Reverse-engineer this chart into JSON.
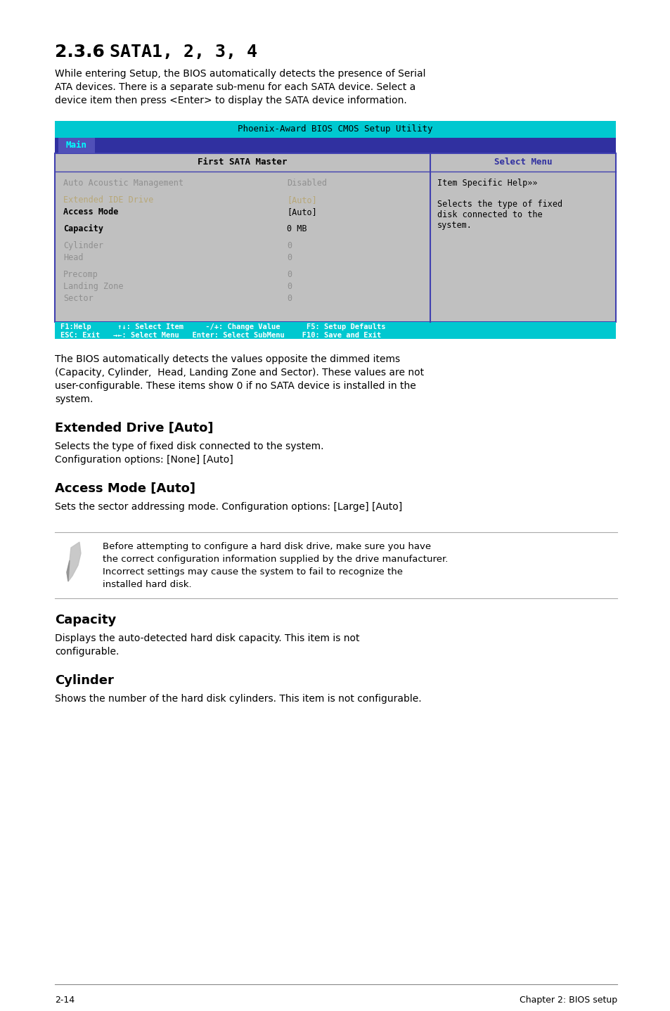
{
  "page_bg": "#ffffff",
  "section_number": "2.3.6",
  "section_title": "SATA1, 2, 3, 4",
  "intro_text": "While entering Setup, the BIOS automatically detects the presence of Serial\nATA devices. There is a separate sub-menu for each SATA device. Select a\ndevice item then press <Enter> to display the SATA device information.",
  "bios_title": "Phoenix-Award BIOS CMOS Setup Utility",
  "bios_title_bg": "#00c8d0",
  "bios_menu_bg": "#3030a0",
  "bios_menu_text": "Main",
  "bios_content_bg": "#c0c0c0",
  "bios_border": "#4040b0",
  "bios_header_left": "First SATA Master",
  "bios_header_right": "Select Menu",
  "bios_header_right_color": "#3030a0",
  "bios_rows": [
    {
      "label": "Auto Acoustic Management",
      "value": "Disabled",
      "dimmed": true,
      "bold_label": false
    },
    {
      "label": "Extended IDE Drive",
      "value": "[Auto]",
      "dimmed": true,
      "bold_label": false,
      "color_override": "#c8c0a0"
    },
    {
      "label": "Access Mode",
      "value": "[Auto]",
      "dimmed": false,
      "bold_label": true
    },
    {
      "label": "Capacity",
      "value": "0 MB",
      "dimmed": false,
      "bold_label": true
    },
    {
      "label": "Cylinder",
      "value": "0",
      "dimmed": true,
      "bold_label": false
    },
    {
      "label": "Head",
      "value": "0",
      "dimmed": true,
      "bold_label": false
    },
    {
      "label": "Precomp",
      "value": "0",
      "dimmed": true,
      "bold_label": false
    },
    {
      "label": "Landing Zone",
      "value": "0",
      "dimmed": true,
      "bold_label": false
    },
    {
      "label": "Sector",
      "value": "0",
      "dimmed": true,
      "bold_label": false
    }
  ],
  "bios_help_lines": [
    "Item Specific Help»»",
    "",
    "Selects the type of fixed",
    "disk connected to the",
    "system."
  ],
  "bios_footer_bg": "#00c8d0",
  "bios_footer_lines": [
    "F1:Help      ↑↓: Select Item     -/+: Change Value      F5: Setup Defaults",
    "ESC: Exit   →←: Select Menu   Enter: Select SubMenu    F10: Save and Exit"
  ],
  "after_bios_text": "The BIOS automatically detects the values opposite the dimmed items\n(Capacity, Cylinder,  Head, Landing Zone and Sector). These values are not\nuser-configurable. These items show 0 if no SATA device is installed in the\nsystem.",
  "section2_title": "Extended Drive [Auto]",
  "section2_text": "Selects the type of fixed disk connected to the system.\nConfiguration options: [None] [Auto]",
  "section3_title": "Access Mode [Auto]",
  "section3_text": "Sets the sector addressing mode. Configuration options: [Large] [Auto]",
  "note_text": "Before attempting to configure a hard disk drive, make sure you have\nthe correct configuration information supplied by the drive manufacturer.\nIncorrect settings may cause the system to fail to recognize the\ninstalled hard disk.",
  "section4_title": "Capacity",
  "section4_text": "Displays the auto-detected hard disk capacity. This item is not\nconfigurable.",
  "section5_title": "Cylinder",
  "section5_text": "Shows the number of the hard disk cylinders. This item is not configurable.",
  "footer_left": "2-14",
  "footer_right": "Chapter 2: BIOS setup"
}
